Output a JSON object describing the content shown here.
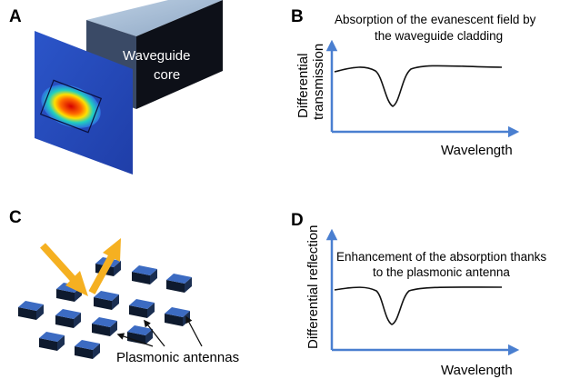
{
  "panels": {
    "a": {
      "letter": "A",
      "core_label_line1": "Waveguide",
      "core_label_line2": "core"
    },
    "b": {
      "letter": "B",
      "caption_line1": "Absorption of the evanescent field by",
      "caption_line2": "the waveguide cladding",
      "ylabel_line1": "Differential",
      "ylabel_line2": "transmission",
      "xlabel": "Wavelength"
    },
    "c": {
      "letter": "C",
      "antenna_label": "Plasmonic antennas"
    },
    "d": {
      "letter": "D",
      "caption_line1": "Enhancement of the absorption thanks",
      "caption_line2": "to the plasmonic antenna",
      "ylabel": "Differential reflection",
      "xlabel": "Wavelength"
    }
  },
  "colors": {
    "axis": "#4a7fd0",
    "curve": "#111111",
    "arrow": "#f5b021",
    "antenna_top": "#3c6bc2",
    "antenna_side": "#0e1a2e",
    "core_top": "#a9bed6",
    "core_side": "#0d1018",
    "core_front_edge": "#3a4a66"
  }
}
